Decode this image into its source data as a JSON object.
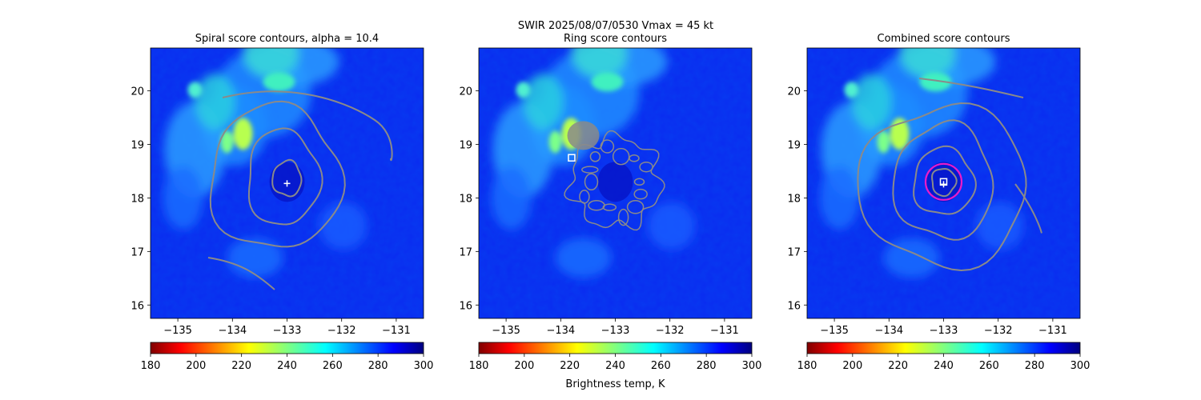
{
  "suptitle_line1": "SWIR  2025/08/07/0530    Vmax = 45 kt",
  "colors": {
    "background_field": "#0a2cf0",
    "contour": "#8a8a8a",
    "magenta_ring": "#e81cc8",
    "marker": "#ffffff"
  },
  "chart_data": [
    {
      "type": "heatmap",
      "title": "Spiral score contours, alpha = 10.4",
      "x_ticks": [
        -135,
        -134,
        -133,
        -132,
        -131
      ],
      "y_ticks": [
        16,
        17,
        18,
        19,
        20
      ],
      "xlim": [
        -135.5,
        -130.5
      ],
      "ylim": [
        15.75,
        20.8
      ],
      "center_marker": {
        "symbol": "plus",
        "lon": -133.0,
        "lat": 18.27
      },
      "colorbar": {
        "cmap": "jet_r",
        "range": [
          180,
          300
        ],
        "ticks": [
          180,
          200,
          220,
          240,
          260,
          280,
          300
        ],
        "label": ""
      }
    },
    {
      "type": "heatmap",
      "title": "Ring score contours",
      "x_ticks": [
        -135,
        -134,
        -133,
        -132,
        -131
      ],
      "y_ticks": [
        16,
        17,
        18,
        19,
        20
      ],
      "xlim": [
        -135.5,
        -130.5
      ],
      "ylim": [
        15.75,
        20.8
      ],
      "center_marker": {
        "symbol": "square",
        "lon": -133.8,
        "lat": 18.75
      },
      "colorbar": {
        "cmap": "jet_r",
        "range": [
          180,
          300
        ],
        "ticks": [
          180,
          200,
          220,
          240,
          260,
          280,
          300
        ],
        "label": "Brightness temp, K"
      }
    },
    {
      "type": "heatmap",
      "title": "Combined score contours",
      "x_ticks": [
        -135,
        -134,
        -133,
        -132,
        -131
      ],
      "y_ticks": [
        16,
        17,
        18,
        19,
        20
      ],
      "xlim": [
        -135.5,
        -130.5
      ],
      "ylim": [
        15.75,
        20.8
      ],
      "center_marker": {
        "symbol": "square-plus",
        "lon": -133.0,
        "lat": 18.3
      },
      "ring": {
        "lon": -133.0,
        "lat": 18.3,
        "radius_deg": 0.33
      },
      "colorbar": {
        "cmap": "jet_r",
        "range": [
          180,
          300
        ],
        "ticks": [
          180,
          200,
          220,
          240,
          260,
          280,
          300
        ],
        "label": ""
      }
    }
  ]
}
